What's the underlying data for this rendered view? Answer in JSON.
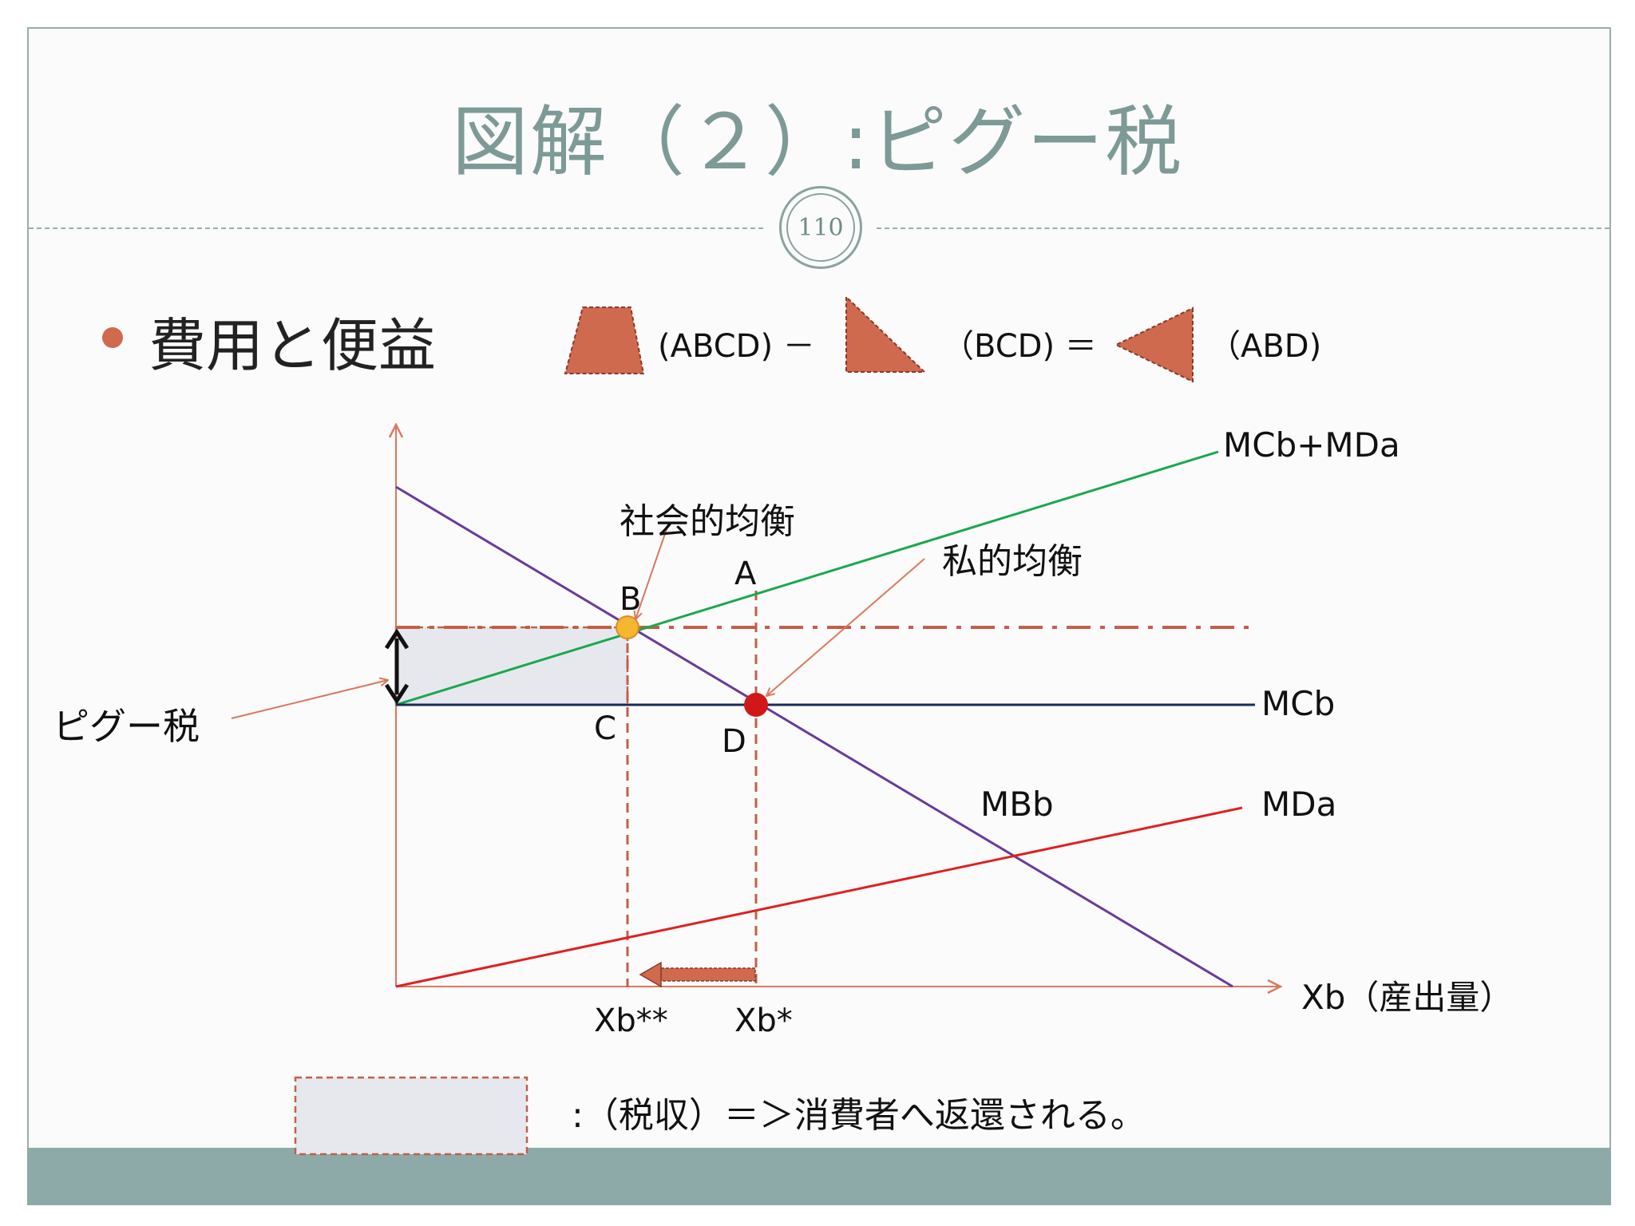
{
  "slide": {
    "title": "図解（２）:ピグー税",
    "page_number": "110",
    "bullet": "費用と便益"
  },
  "formula": {
    "term1": "(ABCD) －",
    "term2": "（BCD) ＝",
    "term3": "（ABD)"
  },
  "diagram": {
    "curves": {
      "mcb_mda": "MCb+MDa",
      "mcb": "MCb",
      "mbb": "MBb",
      "mda": "MDa"
    },
    "points": {
      "a": "A",
      "b": "B",
      "c": "C",
      "d": "D"
    },
    "annotations": {
      "social_equilibrium": "社会的均衡",
      "private_equilibrium": "私的均衡",
      "pigou_tax": "ピグー税"
    },
    "x_axis_label": "Xb（産出量）",
    "x_ticks": {
      "xb_social": "Xb**",
      "xb_private": "Xb*"
    }
  },
  "legend": {
    "text": ":（税収）＝＞消費者へ返還される。"
  },
  "colors": {
    "accent": "#cf6a4f",
    "mcb_mda": "#1aa84e",
    "mcb": "#1a2a5a",
    "mbb": "#6a3a9a",
    "mda": "#e02020",
    "axis": "#d9785e",
    "tax_area": "#e6e8ee",
    "title": "#7d9a96"
  }
}
